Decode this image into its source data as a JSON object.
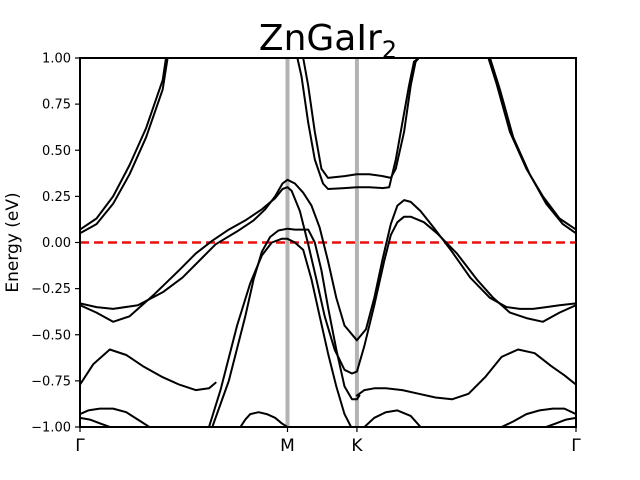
{
  "chart_data": {
    "type": "line",
    "title_main": "ZnGaIr",
    "title_sub": "2",
    "ylabel": "Energy (eV)",
    "xlabel": "",
    "xlim": [
      0,
      3.0
    ],
    "ylim": [
      -1.0,
      1.0
    ],
    "yticks": [
      "1.00",
      "0.75",
      "0.50",
      "0.25",
      "0.00",
      "−0.25",
      "−0.50",
      "−0.75",
      "−1.00"
    ],
    "ytick_values": [
      1.0,
      0.75,
      0.5,
      0.25,
      0.0,
      -0.25,
      -0.5,
      -0.75,
      -1.0
    ],
    "kpoints": [
      {
        "label": "Γ",
        "x": 0.0
      },
      {
        "label": "M",
        "x": 1.255
      },
      {
        "label": "K",
        "x": 1.675
      },
      {
        "label": "Γ",
        "x": 3.0
      }
    ],
    "fermi_level": 0.0,
    "colors": {
      "bands": "#000000",
      "fermi": "#e8110f",
      "kpoint_lines": "#b3b3b3"
    },
    "grid": false,
    "series": [
      {
        "x": [
          0.0,
          0.1,
          0.2,
          0.3,
          0.4,
          0.5,
          0.52
        ],
        "y": [
          0.07,
          0.13,
          0.25,
          0.42,
          0.62,
          0.88,
          1.0
        ]
      },
      {
        "x": [
          0.0,
          0.1,
          0.2,
          0.3,
          0.4,
          0.5,
          0.53
        ],
        "y": [
          0.05,
          0.1,
          0.21,
          0.37,
          0.57,
          0.83,
          1.0
        ]
      },
      {
        "x": [
          2.47,
          2.52,
          2.6,
          2.7,
          2.8,
          2.9,
          3.0
        ],
        "y": [
          1.0,
          0.86,
          0.6,
          0.4,
          0.25,
          0.13,
          0.07
        ]
      },
      {
        "x": [
          2.48,
          2.54,
          2.62,
          2.72,
          2.82,
          2.92,
          3.0
        ],
        "y": [
          1.0,
          0.83,
          0.57,
          0.37,
          0.21,
          0.1,
          0.05
        ]
      },
      {
        "x": [
          1.35,
          1.38,
          1.42,
          1.46,
          1.5,
          1.6,
          1.675,
          1.75,
          1.83,
          1.88,
          1.91,
          1.96,
          2.0,
          2.03,
          2.05
        ],
        "y": [
          1.0,
          0.85,
          0.6,
          0.4,
          0.35,
          0.36,
          0.37,
          0.37,
          0.36,
          0.35,
          0.4,
          0.6,
          0.85,
          0.98,
          1.0
        ]
      },
      {
        "x": [
          1.315,
          1.34,
          1.38,
          1.42,
          1.47,
          1.5,
          1.6,
          1.675,
          1.75,
          1.83,
          1.87,
          1.91,
          1.95,
          1.99,
          2.02,
          2.05
        ],
        "y": [
          1.0,
          0.9,
          0.65,
          0.45,
          0.32,
          0.29,
          0.295,
          0.3,
          0.3,
          0.295,
          0.3,
          0.45,
          0.65,
          0.85,
          0.98,
          1.0
        ]
      },
      {
        "x": [
          0.0,
          0.1,
          0.2,
          0.35,
          0.5,
          0.62,
          0.72,
          0.82,
          0.95,
          1.05,
          1.12,
          1.18,
          1.225,
          1.255,
          1.3,
          1.35,
          1.4,
          1.45,
          1.5,
          1.55,
          1.6,
          1.675,
          1.73,
          1.78,
          1.83,
          1.88,
          1.92,
          1.96,
          2.0,
          2.06,
          2.14,
          2.25,
          2.36,
          2.48,
          2.58,
          2.66,
          2.74,
          2.82,
          2.9,
          3.0
        ],
        "y": [
          -0.33,
          -0.35,
          -0.36,
          -0.34,
          -0.27,
          -0.19,
          -0.1,
          -0.01,
          0.06,
          0.12,
          0.18,
          0.25,
          0.32,
          0.34,
          0.32,
          0.27,
          0.2,
          0.08,
          -0.1,
          -0.3,
          -0.45,
          -0.53,
          -0.47,
          -0.3,
          -0.09,
          0.1,
          0.2,
          0.23,
          0.22,
          0.17,
          0.08,
          -0.05,
          -0.19,
          -0.3,
          -0.35,
          -0.36,
          -0.36,
          -0.35,
          -0.34,
          -0.33
        ]
      },
      {
        "x": [
          0.0,
          0.1,
          0.2,
          0.3,
          0.45,
          0.6,
          0.7,
          0.8,
          0.9,
          1.0,
          1.1,
          1.18,
          1.225,
          1.255,
          1.28,
          1.33,
          1.38,
          1.43,
          1.48,
          1.54,
          1.6,
          1.645,
          1.675,
          1.72,
          1.78,
          1.84,
          1.88,
          1.92,
          1.96,
          2.0,
          2.08,
          2.16,
          2.28,
          2.4,
          2.5,
          2.6,
          2.7,
          2.8,
          2.9,
          3.0
        ],
        "y": [
          -0.34,
          -0.38,
          -0.43,
          -0.4,
          -0.28,
          -0.15,
          -0.06,
          0.01,
          0.07,
          0.12,
          0.18,
          0.24,
          0.29,
          0.3,
          0.28,
          0.17,
          -0.01,
          -0.2,
          -0.4,
          -0.58,
          -0.69,
          -0.71,
          -0.7,
          -0.56,
          -0.34,
          -0.1,
          0.04,
          0.11,
          0.14,
          0.14,
          0.11,
          0.05,
          -0.06,
          -0.2,
          -0.3,
          -0.38,
          -0.41,
          -0.43,
          -0.38,
          -0.34
        ]
      },
      {
        "x": [
          0.8,
          0.9,
          1.0,
          1.05,
          1.1,
          1.15,
          1.2,
          1.255,
          1.3,
          1.35,
          1.38,
          1.42,
          1.46,
          1.5,
          1.55,
          1.6,
          1.645,
          1.675,
          1.69
        ],
        "y": [
          -1.0,
          -0.75,
          -0.4,
          -0.2,
          -0.05,
          0.03,
          0.065,
          0.075,
          0.07,
          0.07,
          0.07,
          0.0,
          -0.15,
          -0.35,
          -0.58,
          -0.78,
          -0.85,
          -0.85,
          -0.83
        ]
      },
      {
        "x": [
          0.78,
          0.85,
          0.95,
          1.03,
          1.1,
          1.16,
          1.22,
          1.255,
          1.3,
          1.35,
          1.4,
          1.45,
          1.5,
          1.55,
          1.6,
          1.64,
          1.67
        ],
        "y": [
          -1.0,
          -0.8,
          -0.45,
          -0.22,
          -0.07,
          0.0,
          0.02,
          0.02,
          0.0,
          -0.04,
          -0.2,
          -0.4,
          -0.6,
          -0.78,
          -0.93,
          -1.0,
          -1.0
        ]
      },
      {
        "x": [
          0.0,
          0.08,
          0.18,
          0.28,
          0.38,
          0.5,
          0.6,
          0.7,
          0.78,
          0.82
        ],
        "y": [
          -0.77,
          -0.66,
          -0.58,
          -0.61,
          -0.67,
          -0.73,
          -0.77,
          -0.8,
          -0.79,
          -0.76
        ]
      },
      {
        "x": [
          1.675,
          1.72,
          1.78,
          1.85,
          1.95,
          2.05,
          2.15,
          2.25,
          2.35,
          2.45,
          2.55,
          2.65,
          2.75,
          2.85,
          2.93,
          3.0
        ],
        "y": [
          -0.83,
          -0.8,
          -0.79,
          -0.79,
          -0.8,
          -0.82,
          -0.84,
          -0.85,
          -0.82,
          -0.73,
          -0.62,
          -0.58,
          -0.6,
          -0.67,
          -0.72,
          -0.77
        ]
      },
      {
        "x": [
          0.0,
          0.05,
          0.12,
          0.2,
          0.28,
          0.35,
          0.42
        ],
        "y": [
          -0.93,
          -0.91,
          -0.9,
          -0.9,
          -0.92,
          -0.96,
          -1.0
        ]
      },
      {
        "x": [
          0.0,
          0.06,
          0.12,
          0.18,
          0.24
        ],
        "y": [
          -0.95,
          -0.96,
          -0.98,
          -1.0,
          -1.0
        ]
      },
      {
        "x": [
          0.97,
          1.0,
          1.03,
          1.08,
          1.13,
          1.18,
          1.22,
          1.255
        ],
        "y": [
          -1.0,
          -0.96,
          -0.93,
          -0.92,
          -0.93,
          -0.95,
          -0.98,
          -1.0
        ]
      },
      {
        "x": [
          1.72,
          1.78,
          1.85,
          1.92,
          2.0,
          2.06
        ],
        "y": [
          -1.0,
          -0.95,
          -0.92,
          -0.91,
          -0.94,
          -1.0
        ]
      },
      {
        "x": [
          2.55,
          2.62,
          2.7,
          2.78,
          2.86,
          2.93,
          3.0
        ],
        "y": [
          -1.0,
          -0.97,
          -0.93,
          -0.91,
          -0.9,
          -0.9,
          -0.93
        ]
      },
      {
        "x": [
          2.76,
          2.82,
          2.88,
          2.94,
          3.0
        ],
        "y": [
          -1.0,
          -1.0,
          -0.98,
          -0.96,
          -0.95
        ]
      }
    ]
  }
}
